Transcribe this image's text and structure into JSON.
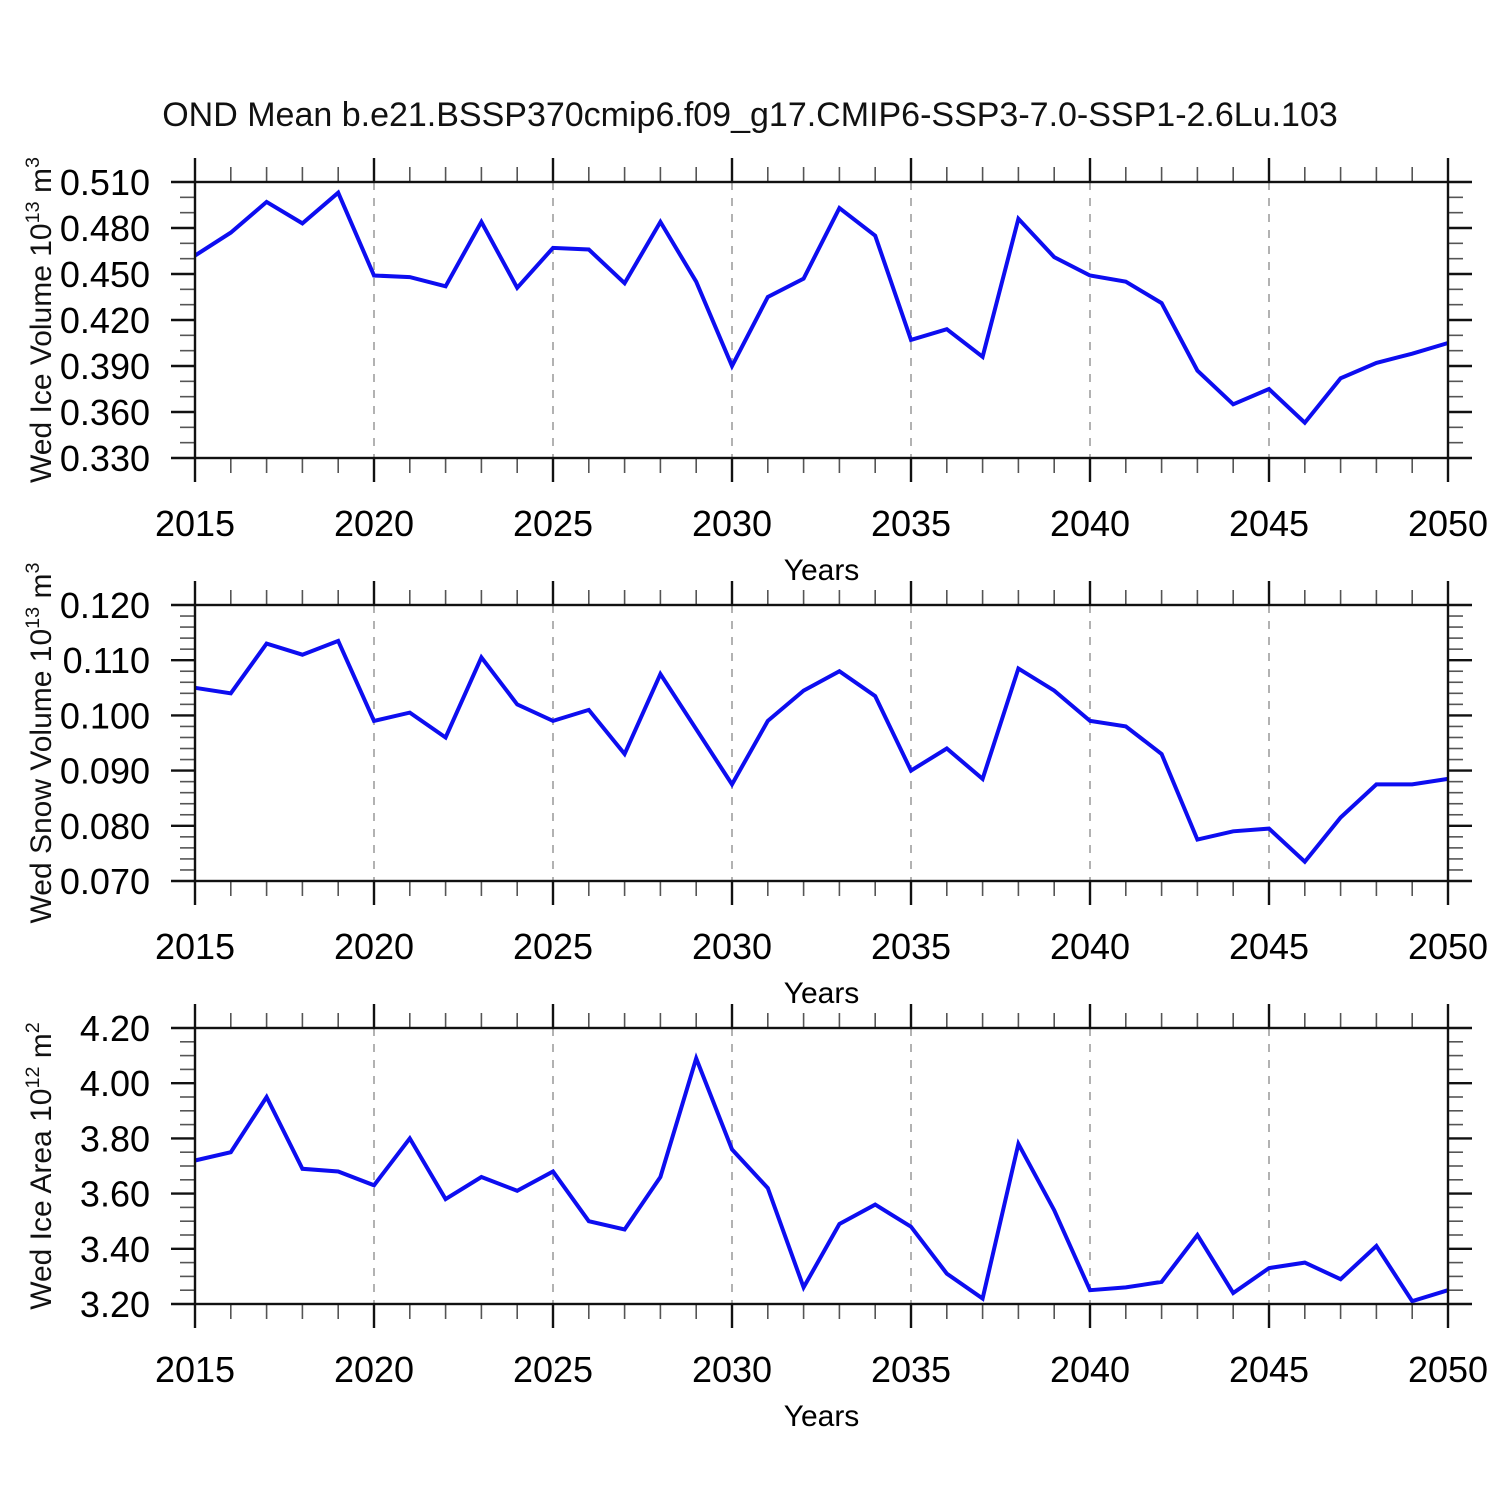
{
  "title": "OND Mean b.e21.BSSP370cmip6.f09_g17.CMIP6-SSP3-7.0-SSP1-2.6Lu.103",
  "colors": {
    "line": "#0d0df0",
    "gridline": "#aaaaaa",
    "frame": "#111111",
    "minor_tick": "#555555",
    "text": "#000000"
  },
  "chart_data": [
    {
      "type": "line",
      "title": "OND Mean b.e21.BSSP370cmip6.f09_g17.CMIP6-SSP3-7.0-SSP1-2.6Lu.103",
      "xlabel": "Years",
      "ylabel_runs": [
        {
          "t": "Wed Ice Volume 10"
        },
        {
          "t": "13",
          "sup": true
        },
        {
          "t": " m"
        },
        {
          "t": "3",
          "sup": true
        }
      ],
      "ylabel_plain": "Wed Ice Volume 10^13 m^3",
      "xlim": [
        2015,
        2050
      ],
      "ylim": [
        0.33,
        0.51
      ],
      "x_minor_step": 1,
      "y_minor_step": 0.01,
      "grid": "vertical-dashed",
      "legend": "none",
      "gridlines_x": [
        2020,
        2025,
        2030,
        2035,
        2040,
        2045
      ],
      "xticks": [
        {
          "v": 2015,
          "label": "2015"
        },
        {
          "v": 2020,
          "label": "2020"
        },
        {
          "v": 2025,
          "label": "2025"
        },
        {
          "v": 2030,
          "label": "2030"
        },
        {
          "v": 2035,
          "label": "2035"
        },
        {
          "v": 2040,
          "label": "2040"
        },
        {
          "v": 2045,
          "label": "2045"
        },
        {
          "v": 2050,
          "label": "2050"
        }
      ],
      "yticks": [
        {
          "v": 0.33,
          "label": "0.330"
        },
        {
          "v": 0.36,
          "label": "0.360"
        },
        {
          "v": 0.39,
          "label": "0.390"
        },
        {
          "v": 0.42,
          "label": "0.420"
        },
        {
          "v": 0.45,
          "label": "0.450"
        },
        {
          "v": 0.48,
          "label": "0.480"
        },
        {
          "v": 0.51,
          "label": "0.510"
        }
      ],
      "x": [
        2015,
        2016,
        2017,
        2018,
        2019,
        2020,
        2021,
        2022,
        2023,
        2024,
        2025,
        2026,
        2027,
        2028,
        2029,
        2030,
        2031,
        2032,
        2033,
        2034,
        2035,
        2036,
        2037,
        2038,
        2039,
        2040,
        2041,
        2042,
        2043,
        2044,
        2045,
        2046,
        2047,
        2048,
        2049,
        2050
      ],
      "values": [
        0.462,
        0.477,
        0.497,
        0.483,
        0.503,
        0.449,
        0.448,
        0.442,
        0.484,
        0.441,
        0.467,
        0.466,
        0.444,
        0.484,
        0.445,
        0.39,
        0.435,
        0.447,
        0.493,
        0.475,
        0.407,
        0.414,
        0.396,
        0.486,
        0.461,
        0.449,
        0.445,
        0.431,
        0.387,
        0.365,
        0.375,
        0.353,
        0.382,
        0.392,
        0.398,
        0.405
      ]
    },
    {
      "type": "line",
      "title": "",
      "xlabel": "Years",
      "ylabel_runs": [
        {
          "t": "Wed Snow Volume 10"
        },
        {
          "t": "13",
          "sup": true
        },
        {
          "t": " m"
        },
        {
          "t": "3",
          "sup": true
        }
      ],
      "ylabel_plain": "Wed Snow Volume 10^13 m^3",
      "xlim": [
        2015,
        2050
      ],
      "ylim": [
        0.07,
        0.12
      ],
      "x_minor_step": 1,
      "y_minor_step": 0.002,
      "grid": "vertical-dashed",
      "legend": "none",
      "gridlines_x": [
        2020,
        2025,
        2030,
        2035,
        2040,
        2045
      ],
      "xticks": [
        {
          "v": 2015,
          "label": "2015"
        },
        {
          "v": 2020,
          "label": "2020"
        },
        {
          "v": 2025,
          "label": "2025"
        },
        {
          "v": 2030,
          "label": "2030"
        },
        {
          "v": 2035,
          "label": "2035"
        },
        {
          "v": 2040,
          "label": "2040"
        },
        {
          "v": 2045,
          "label": "2045"
        },
        {
          "v": 2050,
          "label": "2050"
        }
      ],
      "yticks": [
        {
          "v": 0.07,
          "label": "0.070"
        },
        {
          "v": 0.08,
          "label": "0.080"
        },
        {
          "v": 0.09,
          "label": "0.090"
        },
        {
          "v": 0.1,
          "label": "0.100"
        },
        {
          "v": 0.11,
          "label": "0.110"
        },
        {
          "v": 0.12,
          "label": "0.120"
        }
      ],
      "x": [
        2015,
        2016,
        2017,
        2018,
        2019,
        2020,
        2021,
        2022,
        2023,
        2024,
        2025,
        2026,
        2027,
        2028,
        2029,
        2030,
        2031,
        2032,
        2033,
        2034,
        2035,
        2036,
        2037,
        2038,
        2039,
        2040,
        2041,
        2042,
        2043,
        2044,
        2045,
        2046,
        2047,
        2048,
        2049,
        2050
      ],
      "values": [
        0.105,
        0.104,
        0.113,
        0.111,
        0.1135,
        0.099,
        0.1005,
        0.096,
        0.1105,
        0.102,
        0.099,
        0.101,
        0.093,
        0.1075,
        0.0975,
        0.0875,
        0.099,
        0.1045,
        0.108,
        0.1035,
        0.09,
        0.094,
        0.0885,
        0.1085,
        0.1045,
        0.099,
        0.098,
        0.093,
        0.0775,
        0.079,
        0.0795,
        0.0735,
        0.0815,
        0.0875,
        0.0875,
        0.0885
      ]
    },
    {
      "type": "line",
      "title": "",
      "xlabel": "Years",
      "ylabel_runs": [
        {
          "t": "Wed Ice Area 10"
        },
        {
          "t": "12",
          "sup": true
        },
        {
          "t": " m"
        },
        {
          "t": "2",
          "sup": true
        }
      ],
      "ylabel_plain": "Wed Ice Area 10^12 m^2",
      "xlim": [
        2015,
        2050
      ],
      "ylim": [
        3.2,
        4.2
      ],
      "x_minor_step": 1,
      "y_minor_step": 0.05,
      "grid": "vertical-dashed",
      "legend": "none",
      "gridlines_x": [
        2020,
        2025,
        2030,
        2035,
        2040,
        2045
      ],
      "xticks": [
        {
          "v": 2015,
          "label": "2015"
        },
        {
          "v": 2020,
          "label": "2020"
        },
        {
          "v": 2025,
          "label": "2025"
        },
        {
          "v": 2030,
          "label": "2030"
        },
        {
          "v": 2035,
          "label": "2035"
        },
        {
          "v": 2040,
          "label": "2040"
        },
        {
          "v": 2045,
          "label": "2045"
        },
        {
          "v": 2050,
          "label": "2050"
        }
      ],
      "yticks": [
        {
          "v": 3.2,
          "label": "3.20"
        },
        {
          "v": 3.4,
          "label": "3.40"
        },
        {
          "v": 3.6,
          "label": "3.60"
        },
        {
          "v": 3.8,
          "label": "3.80"
        },
        {
          "v": 4.0,
          "label": "4.00"
        },
        {
          "v": 4.2,
          "label": "4.20"
        }
      ],
      "x": [
        2015,
        2016,
        2017,
        2018,
        2019,
        2020,
        2021,
        2022,
        2023,
        2024,
        2025,
        2026,
        2027,
        2028,
        2029,
        2030,
        2031,
        2032,
        2033,
        2034,
        2035,
        2036,
        2037,
        2038,
        2039,
        2040,
        2041,
        2042,
        2043,
        2044,
        2045,
        2046,
        2047,
        2048,
        2049,
        2050
      ],
      "values": [
        3.72,
        3.75,
        3.95,
        3.69,
        3.68,
        3.63,
        3.8,
        3.58,
        3.66,
        3.61,
        3.68,
        3.5,
        3.47,
        3.66,
        4.09,
        3.76,
        3.62,
        3.26,
        3.49,
        3.56,
        3.48,
        3.31,
        3.22,
        3.78,
        3.54,
        3.25,
        3.26,
        3.28,
        3.45,
        3.24,
        3.33,
        3.35,
        3.29,
        3.41,
        3.21,
        3.25
      ]
    }
  ]
}
